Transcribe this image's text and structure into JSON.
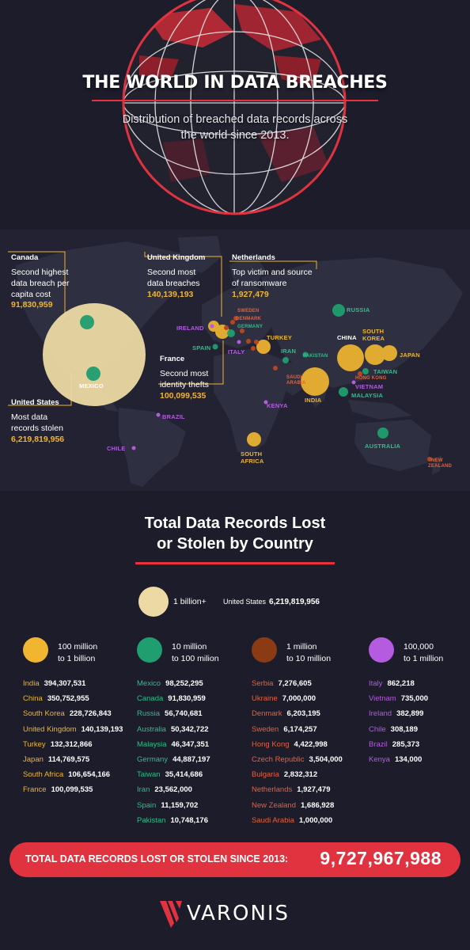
{
  "header": {
    "title": "THE WORLD IN DATA BREACHES",
    "subtitle_line1": "Distribution of breached data records across",
    "subtitle_line2": "the world since 2013."
  },
  "colors": {
    "background": "#1c1c2b",
    "accent_red": "#e0333f",
    "tier_billion": "#ecd9a3",
    "tier_100m": "#f1b52f",
    "tier_10m": "#1f9e6f",
    "tier_1m": "#8b3b14",
    "tier_100k": "#b45be0"
  },
  "callouts": {
    "canada": {
      "name": "Canada",
      "desc1": "Second highest",
      "desc2": "data breach per",
      "desc3": "capita cost",
      "value": "91,830,959"
    },
    "uk": {
      "name": "United Kingdom",
      "desc1": "Second most",
      "desc2": "data breaches",
      "value": "140,139,193"
    },
    "netherlands": {
      "name": "Netherlands",
      "desc1": "Top victim and source",
      "desc2": "of ransomware",
      "value": "1,927,479"
    },
    "france": {
      "name": "France",
      "desc1": "Second most",
      "desc2": "identity thefts",
      "value": "100,099,535"
    },
    "us": {
      "name": "United States",
      "desc1": "Most data",
      "desc2": "records stolen",
      "value": "6,219,819,956"
    }
  },
  "map_labels": {
    "mexico": "MEXICO",
    "brazil": "BRAZIL",
    "chile": "CHILE",
    "ireland": "IRELAND",
    "spain": "SPAIN",
    "italy": "ITALY",
    "sweden": "SWEDEN",
    "denmark": "DENMARK",
    "germany": "GERMANY",
    "turkey": "TURKEY",
    "iran": "IRAN",
    "russia": "RUSSIA",
    "china": "CHINA",
    "south": "SOUTH",
    "korea": "KOREA",
    "japan": "JAPAN",
    "taiwan": "TAIWAN",
    "pakistan": "PAKISTAN",
    "saudi1": "SAUDI",
    "saudi2": "ARABIA",
    "hongkong": "HONG KONG",
    "vietnam": "VIETNAM",
    "malaysia": "MALAYSIA",
    "kenya": "KENYA",
    "india": "INDIA",
    "south_africa1": "SOUTH",
    "south_africa2": "AFRICA",
    "australia": "AUSTRALIA",
    "nz1": "NEW",
    "nz2": "ZEALAND"
  },
  "section": {
    "title_line1": "Total Data Records Lost",
    "title_line2": "or Stolen by Country"
  },
  "billion_tier": {
    "label": "1 billion+",
    "country": "United States",
    "value": "6,219,819,956"
  },
  "tiers": [
    {
      "line1": "100 million",
      "line2": "to 1 billion",
      "rows": [
        {
          "name": "India",
          "value": "394,307,531"
        },
        {
          "name": "China",
          "value": "350,752,955"
        },
        {
          "name": "South Korea",
          "value": "228,726,843"
        },
        {
          "name": "United Kingdom",
          "value": "140,139,193"
        },
        {
          "name": "Turkey",
          "value": "132,312,866"
        },
        {
          "name": "Japan",
          "value": "114,769,575"
        },
        {
          "name": "South Africa",
          "value": "106,654,166"
        },
        {
          "name": "France",
          "value": "100,099,535"
        }
      ]
    },
    {
      "line1": "10 million",
      "line2": "to 100 milion",
      "rows": [
        {
          "name": "Mexico",
          "value": "98,252,295"
        },
        {
          "name": "Canada",
          "value": "91,830,959"
        },
        {
          "name": "Russia",
          "value": "56,740,681"
        },
        {
          "name": "Australia",
          "value": "50,342,722"
        },
        {
          "name": "Malaysia",
          "value": "46,347,351"
        },
        {
          "name": "Germany",
          "value": "44,887,197"
        },
        {
          "name": "Taiwan",
          "value": "35,414,686"
        },
        {
          "name": "Iran",
          "value": "23,562,000"
        },
        {
          "name": "Spain",
          "value": "11,159,702"
        },
        {
          "name": "Pakistan",
          "value": "10,748,176"
        }
      ]
    },
    {
      "line1": "1 million",
      "line2": "to 10 million",
      "rows": [
        {
          "name": "Serbia",
          "value": "7,276,605"
        },
        {
          "name": "Ukraine",
          "value": "7,000,000"
        },
        {
          "name": "Denmark",
          "value": "6,203,195"
        },
        {
          "name": "Sweden",
          "value": "6,174,257"
        },
        {
          "name": "Hong Kong",
          "value": "4,422,998"
        },
        {
          "name": "Czech Republic",
          "value": "3,504,000"
        },
        {
          "name": "Bulgaria",
          "value": "2,832,312"
        },
        {
          "name": "Netherlands",
          "value": "1,927,479"
        },
        {
          "name": "New Zealand",
          "value": "1,686,928"
        },
        {
          "name": "Saudi Arabia",
          "value": "1,000,000"
        }
      ]
    },
    {
      "line1": "100,000",
      "line2": "to 1 million",
      "rows": [
        {
          "name": "Italy",
          "value": "862,218"
        },
        {
          "name": "Vietnam",
          "value": "735,000"
        },
        {
          "name": "Ireland",
          "value": "382,899"
        },
        {
          "name": "Chile",
          "value": "308,189"
        },
        {
          "name": "Brazil",
          "value": "285,373"
        },
        {
          "name": "Kenya",
          "value": "134,000"
        }
      ]
    }
  ],
  "total": {
    "label": "TOTAL DATA RECORDS LOST OR STOLEN SINCE 2013:",
    "value": "9,727,967,988"
  },
  "logo": {
    "text": "VARONIS"
  }
}
